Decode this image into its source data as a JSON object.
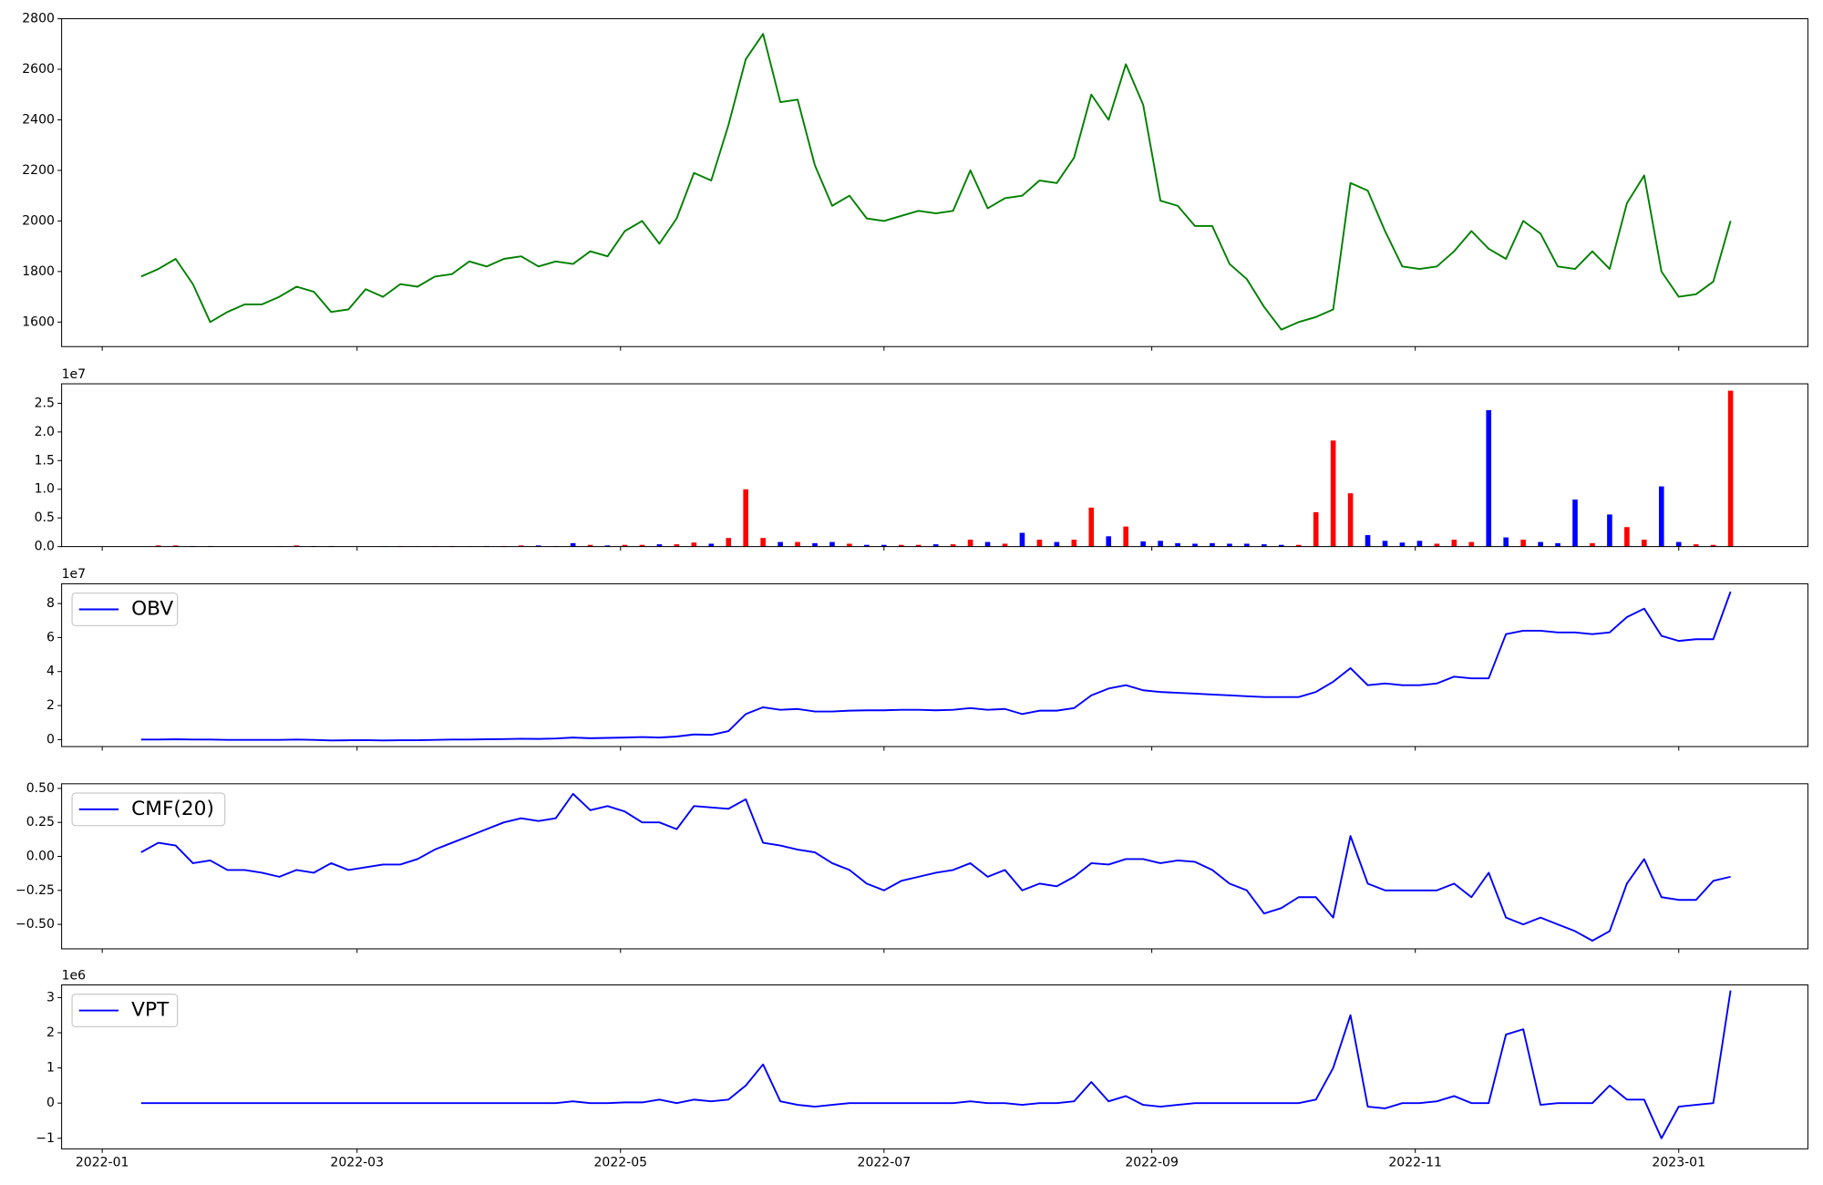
{
  "chart_data": [
    {
      "type": "line",
      "color": "green",
      "x": [
        9,
        13,
        17,
        21,
        25,
        29,
        33,
        37,
        41,
        45,
        49,
        53,
        57,
        61,
        65,
        69,
        73,
        77,
        81,
        85,
        89,
        93,
        97,
        101,
        105,
        109,
        113,
        117,
        121,
        125,
        129,
        133,
        137,
        141,
        145,
        149,
        153,
        157,
        161,
        165,
        169,
        173,
        177,
        181,
        185,
        189,
        193,
        197,
        201,
        205,
        209,
        213,
        217,
        221,
        225,
        229,
        233,
        237,
        241,
        245,
        249,
        253,
        257,
        261,
        265,
        269,
        273,
        277,
        281,
        285,
        289,
        293,
        297,
        301,
        305,
        309,
        313,
        317,
        321,
        325,
        329,
        333,
        337,
        341,
        345,
        349,
        353,
        357,
        361,
        365,
        369,
        373,
        377
      ],
      "values": [
        1780,
        1810,
        1850,
        1750,
        1600,
        1640,
        1670,
        1670,
        1700,
        1740,
        1720,
        1640,
        1650,
        1730,
        1700,
        1750,
        1740,
        1780,
        1790,
        1840,
        1820,
        1850,
        1860,
        1820,
        1840,
        1830,
        1880,
        1860,
        1960,
        2000,
        1910,
        2010,
        2190,
        2160,
        2380,
        2640,
        2740,
        2470,
        2480,
        2220,
        2060,
        2100,
        2010,
        2000,
        2020,
        2040,
        2030,
        2040,
        2200,
        2050,
        2090,
        2100,
        2160,
        2150,
        2250,
        2500,
        2400,
        2620,
        2460,
        2080,
        2060,
        1980,
        1980,
        1830,
        1770,
        1660,
        1570,
        1600,
        1620,
        1650,
        2150,
        2120,
        1960,
        1820,
        1810,
        1820,
        1880,
        1960,
        1890,
        1850,
        2000,
        1950,
        1820,
        1810,
        1880,
        1810,
        2070,
        2180,
        1800,
        1700,
        1710,
        1760,
        2000
      ],
      "xlim": [
        -9.4,
        394.9
      ],
      "ylim": [
        1503,
        2800
      ],
      "yticks": [
        1600,
        1800,
        2000,
        2200,
        2400,
        2600,
        2800
      ]
    },
    {
      "type": "bar",
      "offset_text": "1e7",
      "x": [
        9,
        13,
        17,
        21,
        25,
        29,
        33,
        37,
        41,
        45,
        49,
        53,
        57,
        61,
        65,
        69,
        73,
        77,
        81,
        85,
        89,
        93,
        97,
        101,
        105,
        109,
        113,
        117,
        121,
        125,
        129,
        133,
        137,
        141,
        145,
        149,
        153,
        157,
        161,
        165,
        169,
        173,
        177,
        181,
        185,
        189,
        193,
        197,
        201,
        205,
        209,
        213,
        217,
        221,
        225,
        229,
        233,
        237,
        241,
        245,
        249,
        253,
        257,
        261,
        265,
        269,
        273,
        277,
        281,
        285,
        289,
        293,
        297,
        301,
        305,
        309,
        313,
        317,
        321,
        325,
        329,
        333,
        337,
        341,
        345,
        349,
        353,
        357,
        361,
        365,
        369,
        373,
        377
      ],
      "values": [
        0.002,
        0.02,
        0.02,
        0.01,
        0.01,
        0.002,
        0.002,
        0.002,
        0.005,
        0.02,
        0.01,
        0.01,
        0.002,
        0.002,
        0.005,
        0.01,
        0.005,
        0.01,
        0.01,
        0.005,
        0.01,
        0.01,
        0.02,
        0.02,
        0.01,
        0.06,
        0.03,
        0.02,
        0.03,
        0.03,
        0.04,
        0.04,
        0.07,
        0.05,
        0.15,
        1.0,
        0.15,
        0.08,
        0.08,
        0.06,
        0.08,
        0.05,
        0.03,
        0.03,
        0.03,
        0.03,
        0.04,
        0.04,
        0.12,
        0.08,
        0.05,
        0.24,
        0.12,
        0.08,
        0.12,
        0.68,
        0.18,
        0.35,
        0.09,
        0.1,
        0.06,
        0.05,
        0.06,
        0.05,
        0.05,
        0.04,
        0.03,
        0.03,
        0.6,
        1.85,
        0.93,
        0.2,
        0.1,
        0.07,
        0.1,
        0.05,
        0.12,
        0.08,
        2.38,
        0.16,
        0.12,
        0.08,
        0.06,
        0.82,
        0.06,
        0.56,
        0.34,
        0.12,
        1.05,
        0.08,
        0.04,
        0.03,
        2.72
      ],
      "colors": [
        "red",
        "red",
        "red",
        "blue",
        "blue",
        "red",
        "red",
        "blue",
        "red",
        "red",
        "blue",
        "blue",
        "red",
        "red",
        "blue",
        "red",
        "blue",
        "red",
        "red",
        "red",
        "blue",
        "red",
        "red",
        "blue",
        "red",
        "blue",
        "red",
        "blue",
        "red",
        "red",
        "blue",
        "red",
        "red",
        "blue",
        "red",
        "red",
        "red",
        "blue",
        "red",
        "blue",
        "blue",
        "red",
        "blue",
        "blue",
        "red",
        "red",
        "blue",
        "red",
        "red",
        "blue",
        "red",
        "blue",
        "red",
        "blue",
        "red",
        "red",
        "blue",
        "red",
        "blue",
        "blue",
        "blue",
        "blue",
        "blue",
        "blue",
        "blue",
        "blue",
        "blue",
        "red",
        "red",
        "red",
        "red",
        "blue",
        "blue",
        "blue",
        "blue",
        "red",
        "red",
        "red",
        "blue",
        "blue",
        "red",
        "blue",
        "blue",
        "blue",
        "red",
        "blue",
        "red",
        "red",
        "blue",
        "blue",
        "red",
        "red",
        "red"
      ],
      "xlim": [
        -9.4,
        394.9
      ],
      "ylim": [
        0,
        2.84
      ],
      "yticks": [
        {
          "value": 0,
          "label": "0.0"
        },
        {
          "value": 0.5,
          "label": "0.5"
        },
        {
          "value": 1,
          "label": "1.0"
        },
        {
          "value": 1.5,
          "label": "1.5"
        },
        {
          "value": 2,
          "label": "2.0"
        },
        {
          "value": 2.5,
          "label": "2.5"
        }
      ]
    },
    {
      "type": "line",
      "offset_text": "1e7",
      "legend": "upper left",
      "x": [
        9,
        13,
        17,
        21,
        25,
        29,
        33,
        37,
        41,
        45,
        49,
        53,
        57,
        61,
        65,
        69,
        73,
        77,
        81,
        85,
        89,
        93,
        97,
        101,
        105,
        109,
        113,
        117,
        121,
        125,
        129,
        133,
        137,
        141,
        145,
        149,
        153,
        157,
        161,
        165,
        169,
        173,
        177,
        181,
        185,
        189,
        193,
        197,
        201,
        205,
        209,
        213,
        217,
        221,
        225,
        229,
        233,
        237,
        241,
        245,
        249,
        253,
        257,
        261,
        265,
        269,
        273,
        277,
        281,
        285,
        289,
        293,
        297,
        301,
        305,
        309,
        313,
        317,
        321,
        325,
        329,
        333,
        337,
        341,
        345,
        349,
        353,
        357,
        361,
        365,
        369,
        373,
        377
      ],
      "series": [
        {
          "name": "OBV",
          "color": "blue",
          "values": [
            0,
            0,
            0.02,
            0,
            0,
            -0.02,
            -0.02,
            -0.02,
            -0.02,
            0,
            -0.02,
            -0.05,
            -0.04,
            -0.03,
            -0.05,
            -0.04,
            -0.04,
            -0.02,
            0,
            0,
            0.02,
            0.03,
            0.05,
            0.04,
            0.06,
            0.12,
            0.08,
            0.1,
            0.12,
            0.15,
            0.12,
            0.18,
            0.3,
            0.28,
            0.5,
            1.5,
            1.9,
            1.75,
            1.8,
            1.65,
            1.65,
            1.7,
            1.72,
            1.72,
            1.75,
            1.75,
            1.72,
            1.75,
            1.85,
            1.75,
            1.8,
            1.5,
            1.7,
            1.7,
            1.85,
            2.6,
            3.0,
            3.2,
            2.9,
            2.8,
            2.75,
            2.7,
            2.65,
            2.6,
            2.55,
            2.5,
            2.5,
            2.5,
            2.8,
            3.4,
            4.2,
            3.2,
            3.3,
            3.2,
            3.2,
            3.3,
            3.7,
            3.6,
            3.6,
            6.2,
            6.4,
            6.4,
            6.3,
            6.3,
            6.2,
            6.3,
            7.2,
            7.7,
            6.1,
            5.8,
            5.9,
            5.9,
            8.7
          ]
        }
      ],
      "xlim": [
        -9.4,
        394.9
      ],
      "ylim": [
        -0.41,
        9.16
      ],
      "yticks": [
        0,
        2,
        4,
        6,
        8
      ]
    },
    {
      "type": "line",
      "legend": "upper left",
      "x": [
        9,
        13,
        17,
        21,
        25,
        29,
        33,
        37,
        41,
        45,
        49,
        53,
        57,
        61,
        65,
        69,
        73,
        77,
        81,
        85,
        89,
        93,
        97,
        101,
        105,
        109,
        113,
        117,
        121,
        125,
        129,
        133,
        137,
        141,
        145,
        149,
        153,
        157,
        161,
        165,
        169,
        173,
        177,
        181,
        185,
        189,
        193,
        197,
        201,
        205,
        209,
        213,
        217,
        221,
        225,
        229,
        233,
        237,
        241,
        245,
        249,
        253,
        257,
        261,
        265,
        269,
        273,
        277,
        281,
        285,
        289,
        293,
        297,
        301,
        305,
        309,
        313,
        317,
        321,
        325,
        329,
        333,
        337,
        341,
        345,
        349,
        353,
        357,
        361,
        365,
        369,
        373,
        377
      ],
      "series": [
        {
          "name": "CMF(20)",
          "color": "blue",
          "values": [
            0.03,
            0.1,
            0.08,
            -0.05,
            -0.03,
            -0.1,
            -0.1,
            -0.12,
            -0.15,
            -0.1,
            -0.12,
            -0.05,
            -0.1,
            -0.08,
            -0.06,
            -0.06,
            -0.02,
            0.05,
            0.1,
            0.15,
            0.2,
            0.25,
            0.28,
            0.26,
            0.28,
            0.46,
            0.34,
            0.37,
            0.33,
            0.25,
            0.25,
            0.2,
            0.37,
            0.36,
            0.35,
            0.42,
            0.1,
            0.08,
            0.05,
            0.03,
            -0.05,
            -0.1,
            -0.2,
            -0.25,
            -0.18,
            -0.15,
            -0.12,
            -0.1,
            -0.05,
            -0.15,
            -0.1,
            -0.25,
            -0.2,
            -0.22,
            -0.15,
            -0.05,
            -0.06,
            -0.02,
            -0.02,
            -0.05,
            -0.03,
            -0.04,
            -0.1,
            -0.2,
            -0.25,
            -0.42,
            -0.38,
            -0.3,
            -0.3,
            -0.45,
            0.15,
            -0.2,
            -0.25,
            -0.25,
            -0.25,
            -0.25,
            -0.2,
            -0.3,
            -0.12,
            -0.45,
            -0.5,
            -0.45,
            -0.5,
            -0.55,
            -0.62,
            -0.55,
            -0.2,
            -0.02,
            -0.3,
            -0.32,
            -0.32,
            -0.18,
            -0.15
          ]
        }
      ],
      "xlim": [
        -9.4,
        394.9
      ],
      "ylim": [
        -0.68,
        0.534
      ],
      "yticks": [
        {
          "value": -0.5,
          "label": "−0.50"
        },
        {
          "value": -0.25,
          "label": "−0.25"
        },
        {
          "value": 0,
          "label": "0.00"
        },
        {
          "value": 0.25,
          "label": "0.25"
        },
        {
          "value": 0.5,
          "label": "0.50"
        }
      ]
    },
    {
      "type": "line",
      "offset_text": "1e6",
      "legend": "upper left",
      "x": [
        9,
        13,
        17,
        21,
        25,
        29,
        33,
        37,
        41,
        45,
        49,
        53,
        57,
        61,
        65,
        69,
        73,
        77,
        81,
        85,
        89,
        93,
        97,
        101,
        105,
        109,
        113,
        117,
        121,
        125,
        129,
        133,
        137,
        141,
        145,
        149,
        153,
        157,
        161,
        165,
        169,
        173,
        177,
        181,
        185,
        189,
        193,
        197,
        201,
        205,
        209,
        213,
        217,
        221,
        225,
        229,
        233,
        237,
        241,
        245,
        249,
        253,
        257,
        261,
        265,
        269,
        273,
        277,
        281,
        285,
        289,
        293,
        297,
        301,
        305,
        309,
        313,
        317,
        321,
        325,
        329,
        333,
        337,
        341,
        345,
        349,
        353,
        357,
        361,
        365,
        369,
        373,
        377
      ],
      "series": [
        {
          "name": "VPT",
          "color": "blue",
          "values": [
            0,
            0,
            0,
            0,
            0,
            0,
            0,
            0,
            0,
            0,
            0,
            0,
            0,
            0,
            0,
            0,
            0,
            0,
            0,
            0,
            0,
            0,
            0,
            0,
            0,
            0.05,
            0,
            0,
            0.02,
            0.02,
            0.1,
            0,
            0.1,
            0.05,
            0.1,
            0.5,
            1.1,
            0.05,
            -0.05,
            -0.1,
            -0.05,
            0,
            0,
            0,
            0,
            0,
            0,
            0,
            0.05,
            0,
            0,
            -0.05,
            0,
            0,
            0.05,
            0.6,
            0.05,
            0.2,
            -0.05,
            -0.1,
            -0.05,
            0,
            0,
            0,
            0,
            0,
            0,
            0,
            0.1,
            1.0,
            2.5,
            -0.1,
            -0.15,
            0,
            0,
            0.05,
            0.2,
            0,
            0,
            1.95,
            2.1,
            -0.05,
            0,
            0,
            0,
            0.5,
            0.1,
            0.1,
            -1.0,
            -0.1,
            -0.05,
            0,
            3.2
          ]
        }
      ],
      "xlim": [
        -9.4,
        394.9
      ],
      "ylim": [
        -1.3,
        3.36
      ],
      "yticks": [
        {
          "value": -1,
          "label": "−1"
        },
        0,
        1,
        2,
        3
      ],
      "xticks": [
        {
          "value": 0,
          "label": "2022-01"
        },
        {
          "value": 59,
          "label": "2022-03"
        },
        {
          "value": 120,
          "label": "2022-05"
        },
        {
          "value": 181,
          "label": "2022-07"
        },
        {
          "value": 243,
          "label": "2022-09"
        },
        {
          "value": 304,
          "label": "2022-11"
        },
        {
          "value": 365,
          "label": "2023-01"
        }
      ]
    }
  ]
}
